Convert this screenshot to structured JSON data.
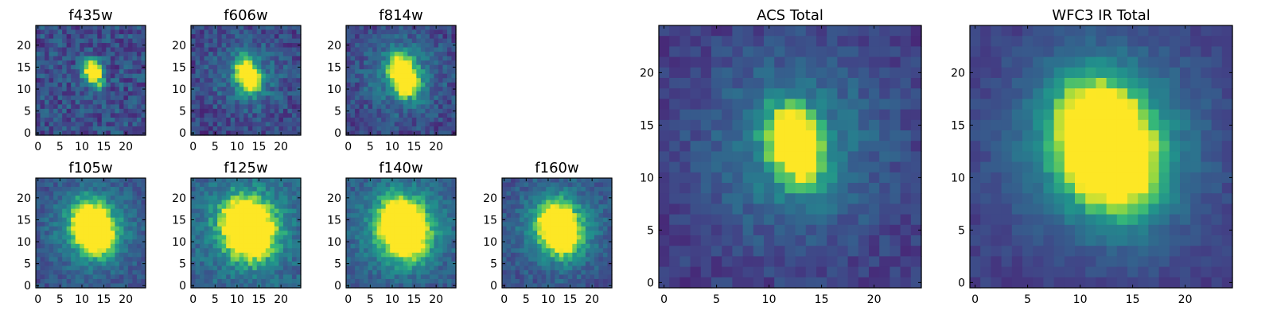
{
  "chart_data": [
    {
      "type": "heatmap",
      "title": "f435w",
      "size": 25,
      "xticks": [
        0,
        5,
        10,
        15,
        20
      ],
      "yticks": [
        0,
        5,
        10,
        15,
        20
      ],
      "xlim": [
        0,
        25
      ],
      "ylim": [
        0,
        25
      ],
      "peak": [
        12.5,
        13.5
      ],
      "sigma": [
        1.6,
        2.2
      ],
      "spread": 0.0,
      "noise": 0.35,
      "base": 0.3,
      "colormap": "viridis"
    },
    {
      "type": "heatmap",
      "title": "f606w",
      "size": 25,
      "xticks": [
        0,
        5,
        10,
        15,
        20
      ],
      "yticks": [
        0,
        5,
        10,
        15,
        20
      ],
      "xlim": [
        0,
        25
      ],
      "ylim": [
        0,
        25
      ],
      "peak": [
        12.5,
        13
      ],
      "sigma": [
        1.8,
        2.6
      ],
      "spread": 0.25,
      "noise": 0.3,
      "base": 0.25,
      "colormap": "viridis"
    },
    {
      "type": "heatmap",
      "title": "f814w",
      "size": 25,
      "xticks": [
        0,
        5,
        10,
        15,
        20
      ],
      "yticks": [
        0,
        5,
        10,
        15,
        20
      ],
      "xlim": [
        0,
        25
      ],
      "ylim": [
        0,
        25
      ],
      "peak": [
        12.5,
        13
      ],
      "sigma": [
        2.0,
        3.0
      ],
      "spread": 0.35,
      "noise": 0.28,
      "base": 0.25,
      "colormap": "viridis"
    },
    {
      "type": "heatmap",
      "title": "f105w",
      "size": 25,
      "xticks": [
        0,
        5,
        10,
        15,
        20
      ],
      "yticks": [
        0,
        5,
        10,
        15,
        20
      ],
      "xlim": [
        0,
        25
      ],
      "ylim": [
        0,
        25
      ],
      "peak": [
        12.5,
        13
      ],
      "sigma": [
        2.6,
        3.6
      ],
      "spread": 0.5,
      "noise": 0.22,
      "base": 0.3,
      "colormap": "viridis"
    },
    {
      "type": "heatmap",
      "title": "f125w",
      "size": 25,
      "xticks": [
        0,
        5,
        10,
        15,
        20
      ],
      "yticks": [
        0,
        5,
        10,
        15,
        20
      ],
      "xlim": [
        0,
        25
      ],
      "ylim": [
        0,
        25
      ],
      "peak": [
        12.5,
        13
      ],
      "sigma": [
        3.0,
        4.0
      ],
      "spread": 0.6,
      "noise": 0.25,
      "base": 0.38,
      "colormap": "viridis"
    },
    {
      "type": "heatmap",
      "title": "f140w",
      "size": 25,
      "xticks": [
        0,
        5,
        10,
        15,
        20
      ],
      "yticks": [
        0,
        5,
        10,
        15,
        20
      ],
      "xlim": [
        0,
        25
      ],
      "ylim": [
        0,
        25
      ],
      "peak": [
        12.5,
        13
      ],
      "sigma": [
        2.8,
        4.0
      ],
      "spread": 0.6,
      "noise": 0.22,
      "base": 0.35,
      "colormap": "viridis"
    },
    {
      "type": "heatmap",
      "title": "f160w",
      "size": 25,
      "xticks": [
        0,
        5,
        10,
        15,
        20
      ],
      "yticks": [
        0,
        5,
        10,
        15,
        20
      ],
      "xlim": [
        0,
        25
      ],
      "ylim": [
        0,
        25
      ],
      "peak": [
        12.5,
        13
      ],
      "sigma": [
        2.6,
        3.6
      ],
      "spread": 0.5,
      "noise": 0.22,
      "base": 0.3,
      "colormap": "viridis"
    },
    {
      "type": "heatmap",
      "title": "ACS Total",
      "size": 25,
      "xticks": [
        0,
        5,
        10,
        15,
        20
      ],
      "yticks": [
        0,
        5,
        10,
        15,
        20
      ],
      "xlim": [
        0,
        25
      ],
      "ylim": [
        0,
        25
      ],
      "peak": [
        12.5,
        13
      ],
      "sigma": [
        1.6,
        2.4
      ],
      "spread": 0.35,
      "noise": 0.18,
      "base": 0.22,
      "colormap": "viridis"
    },
    {
      "type": "heatmap",
      "title": "WFC3 IR Total",
      "size": 25,
      "xticks": [
        0,
        5,
        10,
        15,
        20
      ],
      "yticks": [
        0,
        5,
        10,
        15,
        20
      ],
      "xlim": [
        0,
        25
      ],
      "ylim": [
        0,
        25
      ],
      "peak": [
        12.5,
        13
      ],
      "sigma": [
        2.8,
        4.0
      ],
      "spread": 0.55,
      "noise": 0.12,
      "base": 0.22,
      "colormap": "viridis"
    }
  ]
}
